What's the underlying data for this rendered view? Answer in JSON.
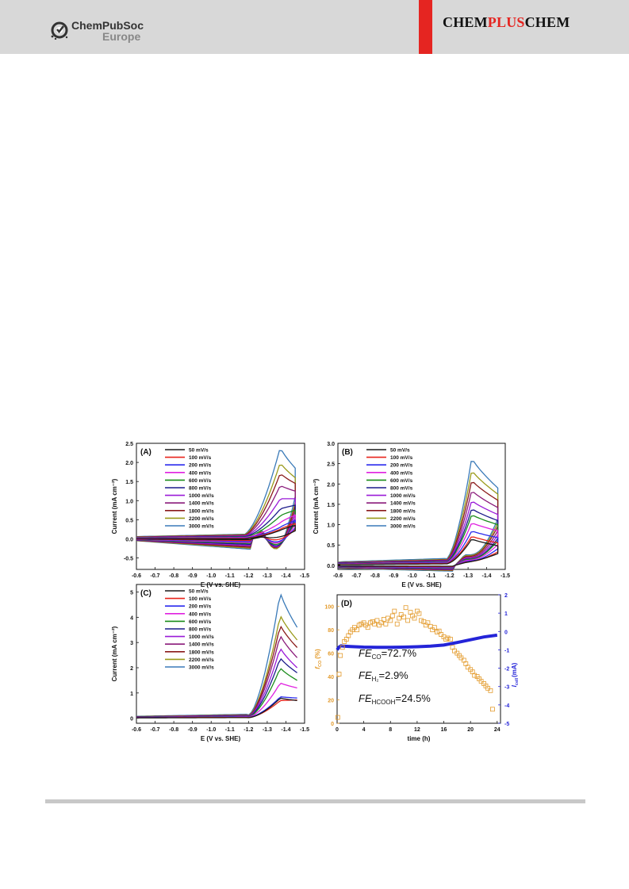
{
  "header": {
    "publisher_line1": "ChemPubSoc",
    "publisher_line2": "Europe",
    "journal_part1": "CHEM",
    "journal_part2": "PLUS",
    "journal_part3": "CHEM",
    "accent_color": "#e52521"
  },
  "series_colors": [
    "#1a1a1a",
    "#e8231a",
    "#2a2aee",
    "#e020e0",
    "#1a8c1a",
    "#1a1a8a",
    "#9a1ad8",
    "#8a1a7a",
    "#8a1a1a",
    "#9a9a1a",
    "#3a7ab8"
  ],
  "legend_labels": [
    "50 mV/s",
    "100 mV/s",
    "200 mV/s",
    "400 mV/s",
    "600 mV/s",
    "800 mV/s",
    "1000 mV/s",
    "1400 mV/s",
    "1800 mV/s",
    "2200 mV/s",
    "3000 mV/s"
  ],
  "chart_data": [
    {
      "panel": "(A)",
      "type": "line",
      "xlabel": "E (V vs. SHE)",
      "ylabel": "Current (mA cm⁻²)",
      "xlim": [
        -0.6,
        -1.5
      ],
      "ylim": [
        -0.8,
        2.5
      ],
      "xticks": [
        "-0.6",
        "-0.7",
        "-0.8",
        "-0.9",
        "-1.0",
        "-1.1",
        "-1.2",
        "-1.3",
        "-1.4",
        "-1.5"
      ],
      "yticks": [
        "-0.5",
        "0.0",
        "0.5",
        "1.0",
        "1.5",
        "2.0",
        "2.5"
      ],
      "cv": {
        "xs": -0.6,
        "xe": -1.45,
        "onset": -1.17,
        "peakE": -1.37,
        "amp": 0.9,
        "reverse": true,
        "peaks": [
          0.22,
          0.25,
          0.3,
          0.42,
          0.6,
          0.78,
          1.05,
          1.4,
          1.72,
          2.0,
          2.4
        ],
        "base": [
          0.0,
          0.01,
          0.02,
          0.03,
          0.04,
          0.05,
          0.06,
          0.07,
          0.08,
          0.09,
          0.1
        ],
        "tail": [
          0.35,
          0.4,
          0.48,
          0.62,
          0.75,
          0.88,
          1.05,
          1.25,
          1.45,
          1.6,
          1.85
        ]
      }
    },
    {
      "panel": "(B)",
      "type": "line",
      "xlabel": "E (V vs. SHE)",
      "ylabel": "Current (mA cm⁻²)",
      "xlim": [
        -0.6,
        -1.5
      ],
      "ylim": [
        -0.1,
        3.0
      ],
      "xticks": [
        "-0.6",
        "-0.7",
        "-0.8",
        "-0.9",
        "-1.0",
        "-1.1",
        "-1.2",
        "-1.3",
        "-1.4",
        "-1.5"
      ],
      "yticks": [
        "0.0",
        "0.5",
        "1.0",
        "1.5",
        "2.0",
        "2.5",
        "3.0"
      ],
      "cv": {
        "xs": -0.6,
        "xe": -1.46,
        "onset": -1.18,
        "peakE": -1.32,
        "amp": 0.3,
        "reverse": true,
        "peaks": [
          0.65,
          0.72,
          0.85,
          1.05,
          1.25,
          1.4,
          1.6,
          1.85,
          2.1,
          2.35,
          2.65
        ],
        "base": [
          0.03,
          0.04,
          0.05,
          0.06,
          0.07,
          0.08,
          0.09,
          0.1,
          0.11,
          0.12,
          0.14
        ],
        "tail": [
          0.48,
          0.55,
          0.68,
          0.85,
          1.0,
          1.1,
          1.25,
          1.42,
          1.6,
          1.75,
          1.9
        ]
      }
    },
    {
      "panel": "(C)",
      "type": "line",
      "xlabel": "E (V vs. SHE)",
      "ylabel": "Current (mA cm⁻²)",
      "xlim": [
        -0.6,
        -1.5
      ],
      "ylim": [
        -0.2,
        5.3
      ],
      "xticks": [
        "-0.6",
        "-0.7",
        "-0.8",
        "-0.9",
        "-1.0",
        "-1.1",
        "-1.2",
        "-1.3",
        "-1.4",
        "-1.5"
      ],
      "yticks": [
        "0",
        "1",
        "2",
        "3",
        "4",
        "5"
      ],
      "cv": {
        "xs": -0.6,
        "xe": -1.46,
        "onset": -1.2,
        "peakE": -1.37,
        "amp": 0.4,
        "reverse": false,
        "peaks": [
          0.8,
          0.7,
          0.85,
          1.4,
          2.0,
          2.4,
          2.8,
          3.3,
          3.7,
          4.1,
          5.0
        ],
        "base": [
          0.02,
          0.03,
          0.04,
          0.05,
          0.06,
          0.07,
          0.08,
          0.09,
          0.1,
          0.11,
          0.13
        ],
        "tail": [
          0.7,
          0.72,
          0.8,
          1.2,
          1.5,
          1.8,
          2.0,
          2.4,
          2.8,
          3.1,
          3.6
        ]
      }
    },
    {
      "panel": "(D)",
      "type": "scatter",
      "xlabel": "time (h)",
      "ylabel_left": "f",
      "ylabel_left_sub": "CO",
      "ylabel_left_unit": "(%)",
      "ylabel_right": "I",
      "ylabel_right_sub": "cell",
      "ylabel_right_unit": "(mA)",
      "xlim": [
        0,
        24.5
      ],
      "ylim_left": [
        0,
        110
      ],
      "ylim_right": [
        -5,
        2
      ],
      "xticks": [
        "0",
        "4",
        "8",
        "12",
        "16",
        "20",
        "24"
      ],
      "yticks_left": [
        "0",
        "20",
        "40",
        "60",
        "80",
        "100"
      ],
      "yticks_right": [
        "2",
        "1",
        "0",
        "-1",
        "-2",
        "-3",
        "-4",
        "-5"
      ],
      "left_color": "#e39a2a",
      "right_color": "#2424d8",
      "annotations": [
        {
          "main": "FE",
          "sub": "CO",
          "value": "=72.7%"
        },
        {
          "main": "FE",
          "sub": "H₂",
          "value": "=2.9%"
        },
        {
          "main": "FE",
          "sub": "HCOOH",
          "value": "=24.5%"
        }
      ],
      "fco_points": [
        [
          0.1,
          5
        ],
        [
          0.3,
          42
        ],
        [
          0.5,
          58
        ],
        [
          0.8,
          65
        ],
        [
          1.1,
          70
        ],
        [
          1.4,
          72
        ],
        [
          1.7,
          75
        ],
        [
          2,
          78
        ],
        [
          2.3,
          80
        ],
        [
          2.6,
          82
        ],
        [
          3,
          80
        ],
        [
          3.3,
          84
        ],
        [
          3.6,
          85
        ],
        [
          4,
          86
        ],
        [
          4.3,
          84
        ],
        [
          4.6,
          82
        ],
        [
          5,
          86
        ],
        [
          5.3,
          87
        ],
        [
          5.6,
          85
        ],
        [
          6,
          88
        ],
        [
          6.3,
          84
        ],
        [
          6.6,
          86
        ],
        [
          7,
          89
        ],
        [
          7.3,
          85
        ],
        [
          7.6,
          90
        ],
        [
          8,
          88
        ],
        [
          8.3,
          92
        ],
        [
          8.6,
          96
        ],
        [
          9,
          85
        ],
        [
          9.3,
          90
        ],
        [
          9.6,
          93
        ],
        [
          10,
          91
        ],
        [
          10.3,
          99
        ],
        [
          10.6,
          88
        ],
        [
          11,
          95
        ],
        [
          11.3,
          92
        ],
        [
          11.6,
          90
        ],
        [
          12,
          96
        ],
        [
          12.3,
          94
        ],
        [
          12.6,
          88
        ],
        [
          13,
          87
        ],
        [
          13.3,
          84
        ],
        [
          13.6,
          86
        ],
        [
          14,
          83
        ],
        [
          14.3,
          80
        ],
        [
          14.6,
          82
        ],
        [
          15,
          78
        ],
        [
          15.3,
          79
        ],
        [
          15.6,
          76
        ],
        [
          16,
          74
        ],
        [
          16.3,
          72
        ],
        [
          16.6,
          73
        ],
        [
          17,
          72
        ],
        [
          17.3,
          65
        ],
        [
          17.6,
          62
        ],
        [
          18,
          60
        ],
        [
          18.3,
          58
        ],
        [
          18.6,
          56
        ],
        [
          19,
          54
        ],
        [
          19.3,
          51
        ],
        [
          19.6,
          48
        ],
        [
          20,
          46
        ],
        [
          20.3,
          44
        ],
        [
          20.6,
          41
        ],
        [
          21,
          40
        ],
        [
          21.3,
          38
        ],
        [
          21.6,
          36
        ],
        [
          22,
          34
        ],
        [
          22.3,
          32
        ],
        [
          22.6,
          30
        ],
        [
          23,
          28
        ],
        [
          23.3,
          12
        ]
      ],
      "icell_points": [
        [
          0,
          -1
        ],
        [
          0.3,
          -0.85
        ],
        [
          0.6,
          -0.78
        ],
        [
          1,
          -0.8
        ],
        [
          2,
          -0.82
        ],
        [
          4,
          -0.85
        ],
        [
          6,
          -0.86
        ],
        [
          8,
          -0.86
        ],
        [
          10,
          -0.85
        ],
        [
          12,
          -0.83
        ],
        [
          14,
          -0.8
        ],
        [
          16,
          -0.74
        ],
        [
          18,
          -0.6
        ],
        [
          20,
          -0.45
        ],
        [
          22,
          -0.3
        ],
        [
          24,
          -0.2
        ]
      ]
    }
  ]
}
